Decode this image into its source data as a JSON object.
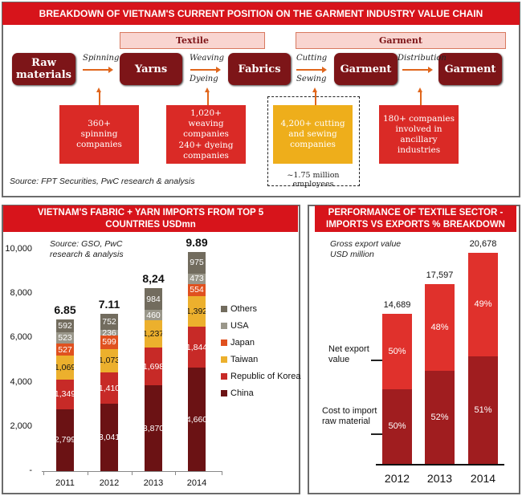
{
  "value_chain": {
    "title": "BREAKDOWN OF VIETNAM'S CURRENT POSITION ON THE GARMENT INDUSTRY VALUE CHAIN",
    "categories": [
      {
        "label": "Textile"
      },
      {
        "label": "Garment"
      }
    ],
    "stages": [
      {
        "label": "Raw materials"
      },
      {
        "label": "Yarns"
      },
      {
        "label": "Fabrics"
      },
      {
        "label": "Garment"
      },
      {
        "label": "Garment"
      }
    ],
    "processes": {
      "spinning": "Spinning",
      "weaving": "Weaving",
      "dyeing": "Dyeing",
      "cutting": "Cutting",
      "sewing": "Sewing",
      "distribution": "Distribution"
    },
    "stats": {
      "spinning": "360+ spinning companies",
      "weaving": "1,020+ weaving companies",
      "dyeing": "240+ dyeing companies",
      "cutting_sewing": "4,200+ cutting and sewing companies",
      "employees": "~1.75 million employees",
      "ancillary": "180+ companies involved in ancillary industries"
    },
    "source": "Source: FPT Securities, PwC research & analysis",
    "colors": {
      "header": "#d7141b",
      "stage": "#7d1518",
      "stat": "#da2a26",
      "highlight": "#eeae1b",
      "arrow": "#e0661c"
    }
  },
  "chart_data": [
    {
      "type": "bar",
      "stacked": true,
      "title": "VIETNAM'S FABRIC + YARN IMPORTS FROM TOP 5 COUNTRIES USDmn",
      "source": "Source: GSO, PwC research & analysis",
      "categories": [
        "2011",
        "2012",
        "2013",
        "2014"
      ],
      "series": [
        {
          "name": "China",
          "color": "#6b1214",
          "values": [
            2799,
            3041,
            3870,
            4660
          ],
          "labels": [
            "2,799",
            "3,041",
            "3,870",
            "4,660"
          ]
        },
        {
          "name": "Republic of Korea",
          "color": "#c72a27",
          "values": [
            1349,
            1410,
            1698,
            1844
          ],
          "labels": [
            "1,349",
            "1,410",
            "1,698",
            "1,844"
          ]
        },
        {
          "name": "Taiwan",
          "color": "#ecb02d",
          "values": [
            1069,
            1073,
            1237,
            1392
          ],
          "labels": [
            "1,069",
            "1,073",
            "1,237",
            "1,392"
          ]
        },
        {
          "name": "Japan",
          "color": "#e0511f",
          "values": [
            527,
            599,
            0,
            554
          ],
          "labels": [
            "527",
            "599",
            "",
            "554"
          ]
        },
        {
          "name": "USA",
          "color": "#9a978a",
          "values": [
            523,
            236,
            460,
            473
          ],
          "labels": [
            "523",
            "236",
            "460",
            "473"
          ]
        },
        {
          "name": "Others",
          "color": "#726c5e",
          "values": [
            592,
            752,
            984,
            975
          ],
          "labels": [
            "592",
            "752",
            "984",
            "975"
          ]
        }
      ],
      "totals": [
        "6.85",
        "7.11",
        "8,24",
        "9.89"
      ],
      "yticks": [
        "-",
        "2,000",
        "4,000",
        "6,000",
        "8,000",
        "10,000"
      ],
      "ylim": [
        0,
        10000
      ],
      "legend_order": [
        "Others",
        "USA",
        "Japan",
        "Taiwan",
        "Republic of Korea",
        "China"
      ],
      "legend_position": "right"
    },
    {
      "type": "bar",
      "stacked": true,
      "title": "PERFORMANCE OF TEXTILE SECTOR - IMPORTS VS EXPORTS % BREAKDOWN",
      "subtitle": "Gross export value USD million",
      "categories": [
        "2012",
        "2013",
        "2014"
      ],
      "totals": [
        14689,
        17597,
        20678
      ],
      "total_labels": [
        "14,689",
        "17,597",
        "20,678"
      ],
      "series": [
        {
          "name": "Cost to import raw material",
          "color": "#a01d1f",
          "percent": [
            50,
            52,
            51
          ],
          "labels": [
            "50%",
            "52%",
            "51%"
          ]
        },
        {
          "name": "Net export value",
          "color": "#e0312c",
          "percent": [
            50,
            48,
            49
          ],
          "labels": [
            "50%",
            "48%",
            "49%"
          ]
        }
      ],
      "annotations": [
        "Net export value",
        "Cost to import raw material"
      ]
    }
  ]
}
